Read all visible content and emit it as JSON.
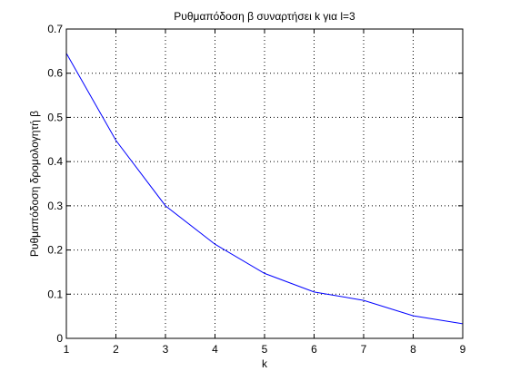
{
  "chart_data": {
    "type": "line",
    "title": "Ρυθμαπόδοση β συναρτήσει k για l=3",
    "xlabel": "k",
    "ylabel": "Ρυθμαπόδοση δρομολογητή β",
    "xlim": [
      1,
      9
    ],
    "ylim": [
      0,
      0.7
    ],
    "x_ticks": [
      "1",
      "2",
      "3",
      "4",
      "5",
      "6",
      "7",
      "8",
      "9"
    ],
    "y_ticks": [
      "0",
      "0.1",
      "0.2",
      "0.3",
      "0.4",
      "0.5",
      "0.6",
      "0.7"
    ],
    "grid": true,
    "series": [
      {
        "x": [
          1,
          2,
          3,
          4,
          5,
          6,
          7,
          8,
          9
        ],
        "values": [
          0.645,
          0.448,
          0.3,
          0.213,
          0.147,
          0.105,
          0.086,
          0.051,
          0.033
        ],
        "color": "#0000ff"
      }
    ]
  }
}
